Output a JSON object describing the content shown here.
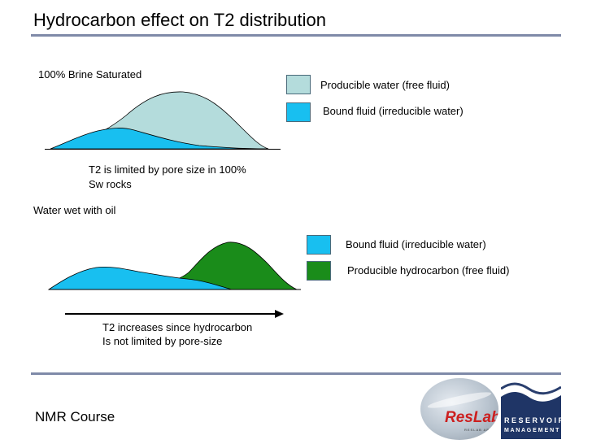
{
  "slide": {
    "title": "Hydrocarbon effect on T2 distribution",
    "footer": "NMR Course"
  },
  "top_panel": {
    "heading": "100% Brine Saturated",
    "caption_line1": "T2 is limited by pore size in 100%",
    "caption_line2": "Sw rocks",
    "legend": [
      {
        "label": "Producible water (free fluid)",
        "color": "#b4dcdc"
      },
      {
        "label": "Bound fluid (irreducible water)",
        "color": "#18bff0"
      }
    ]
  },
  "bottom_panel": {
    "heading": "Water wet with oil",
    "caption_line1": "T2 increases since hydrocarbon",
    "caption_line2": "Is not limited by pore-size",
    "legend": [
      {
        "label": "Bound fluid (irreducible water)",
        "color": "#18bff0"
      },
      {
        "label": "Producible hydrocarbon (free fluid)",
        "color": "#1a8c1a"
      }
    ]
  },
  "logos": {
    "reslab_text": "ResLab",
    "reslab_sub": "RESLAB ART",
    "reservoir_line1": "R E S E R V O I R",
    "reservoir_line2": "M A N A G E M E N T"
  }
}
